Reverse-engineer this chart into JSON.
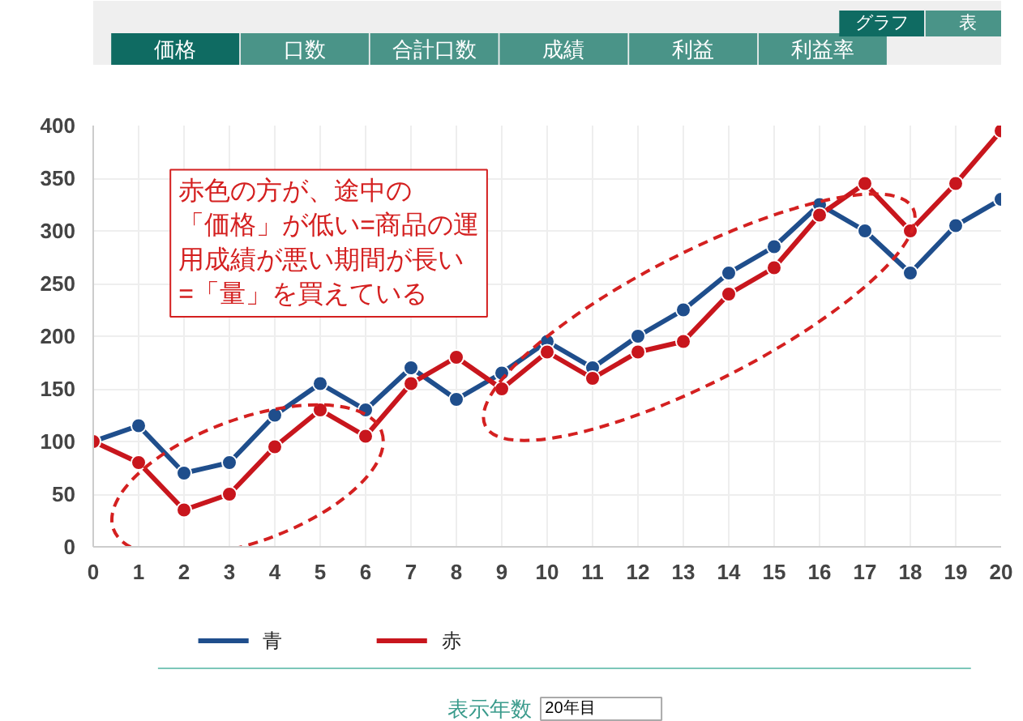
{
  "chart_data": {
    "type": "line",
    "x": [
      0,
      1,
      2,
      3,
      4,
      5,
      6,
      7,
      8,
      9,
      10,
      11,
      12,
      13,
      14,
      15,
      16,
      17,
      18,
      19,
      20
    ],
    "series": [
      {
        "name": "青",
        "color": "#1f4e8c",
        "values": [
          100,
          115,
          70,
          80,
          125,
          155,
          130,
          170,
          140,
          165,
          195,
          170,
          200,
          225,
          260,
          285,
          325,
          300,
          260,
          305,
          330
        ]
      },
      {
        "name": "赤",
        "color": "#c8161d",
        "values": [
          100,
          80,
          35,
          50,
          95,
          130,
          105,
          155,
          180,
          150,
          185,
          160,
          185,
          195,
          240,
          265,
          315,
          345,
          300,
          345,
          395
        ]
      }
    ],
    "xlim": [
      0,
      20
    ],
    "xticks": [
      0,
      1,
      2,
      3,
      4,
      5,
      6,
      7,
      8,
      9,
      10,
      11,
      12,
      13,
      14,
      15,
      16,
      17,
      18,
      19,
      20
    ],
    "ylim": [
      0,
      400
    ],
    "yticks": [
      0,
      50,
      100,
      150,
      200,
      250,
      300,
      350,
      400
    ],
    "grid": true,
    "legend": "bottom",
    "marker": "circle",
    "line_style": "solid",
    "annotations": [
      "赤色の方が、途中の「価格」が低い=商品の運用成績が悪い期間が長い=「量」を買えている",
      "価格",
      "口数",
      "合計口数",
      "成績",
      "利益",
      "利益率",
      "グラフ",
      "表",
      "表示年数",
      "20年目"
    ]
  }
}
